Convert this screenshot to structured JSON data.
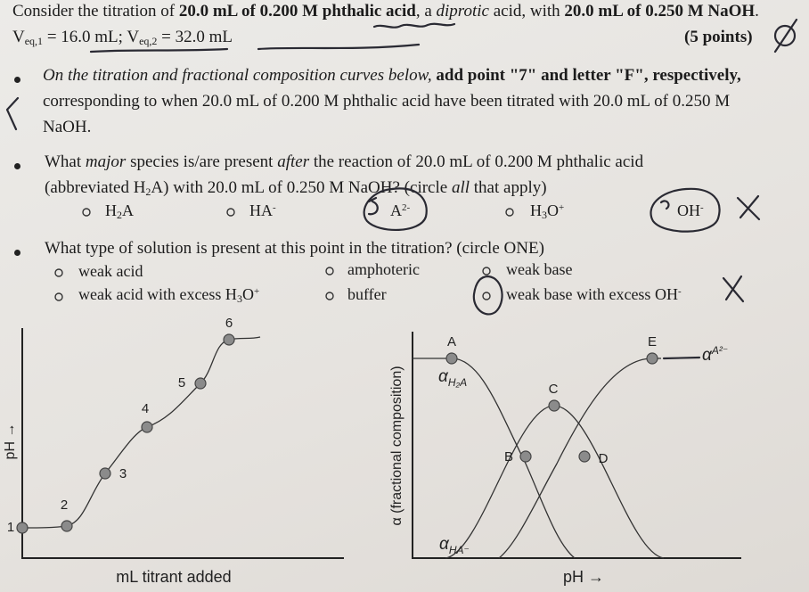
{
  "header": {
    "intro": [
      "Consider the titration of ",
      "20.0 mL of 0.200 M phthalic acid",
      ", a ",
      "diprotic",
      " acid, with ",
      "20.0 mL of 0.250 M NaOH",
      ". V",
      "eq,1",
      " = 16.0 mL; V",
      "eq,2",
      " = 32.0 mL"
    ],
    "points": "(5 points)"
  },
  "items": [
    {
      "text": [
        "On the titration and fractional composition curves below, ",
        "add point \"7\" and letter \"F\", respectively,",
        " corresponding to when 20.0 mL of 0.200 M phthalic acid have been titrated with 20.0 mL of 0.250 M NaOH."
      ]
    },
    {
      "text": [
        "What ",
        "major",
        " species is/are present ",
        "after",
        " the reaction of 20.0 mL of 0.200 M phthalic acid (abbreviated H",
        "2",
        "A) with 20.0 mL of 0.250 M NaOH? (circle ",
        "all",
        " that apply)"
      ],
      "options": [
        [
          "H",
          "2",
          "A"
        ],
        [
          "HA",
          "-"
        ],
        [
          "A",
          "2-"
        ],
        [
          "H",
          "3",
          "O",
          "+"
        ],
        [
          "OH",
          "-"
        ]
      ]
    },
    {
      "text": [
        "What type of solution is present at this point in the titration? (circle ONE)"
      ],
      "options": [
        [
          "weak acid"
        ],
        [
          "amphoteric"
        ],
        [
          "weak base"
        ],
        [
          "weak acid with excess H",
          "3",
          "O",
          "+"
        ],
        [
          "buffer"
        ],
        [
          "weak base with excess OH",
          "-"
        ]
      ]
    }
  ],
  "titration_plot": {
    "y_label": "pH →",
    "x_label": "mL titrant added",
    "point_labels": [
      "1",
      "2",
      "3",
      "4",
      "5",
      "6"
    ]
  },
  "fraction_plot": {
    "y_label": "α (fractional composition)",
    "x_label": "pH →",
    "point_labels": [
      "A",
      "B",
      "C",
      "D",
      "E"
    ],
    "curve_labels": [
      [
        "α",
        "H₂A"
      ],
      [
        "α",
        "HA⁻"
      ],
      [
        "α",
        "A²⁻"
      ]
    ]
  }
}
